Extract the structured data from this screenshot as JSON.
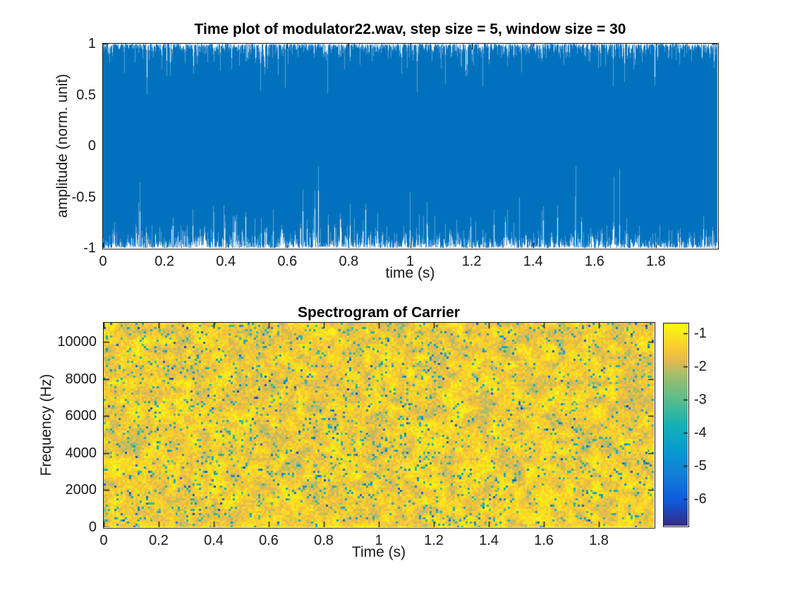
{
  "chart_data": [
    {
      "type": "line",
      "title": "Time plot of modulator22.wav, step size = 5, window size = 30",
      "xlabel": "time (s)",
      "ylabel": "amplitude (norm. unit)",
      "xlim": [
        0,
        2
      ],
      "ylim": [
        -1,
        1
      ],
      "xticks": [
        0,
        0.2,
        0.4,
        0.6,
        0.8,
        1,
        1.2,
        1.4,
        1.6,
        1.8
      ],
      "yticks": [
        1,
        0.5,
        0,
        -0.5,
        -1
      ],
      "grid": false,
      "series": [
        {
          "name": "modulator22.wav waveform",
          "color": "#0072BD",
          "description": "Dense audio waveform spanning 0 to 2 s whose envelope saturates the full -1 to 1 amplitude range for the whole duration; sparse narrow dips in the peak envelope (e.g. to about 0.62 near t=0.84 s and about 0.47 near t=1.25 s) and ragged troughs near -1."
        }
      ]
    },
    {
      "type": "heatmap",
      "title": "Spectrogram of Carrier",
      "xlabel": "Time (s)",
      "ylabel": "Frequency (Hz)",
      "xlim": [
        0,
        2
      ],
      "ylim": [
        0,
        11025
      ],
      "xticks": [
        0,
        0.2,
        0.4,
        0.6,
        0.8,
        1,
        1.2,
        1.4,
        1.6,
        1.8
      ],
      "yticks": [
        0,
        2000,
        4000,
        6000,
        8000,
        10000
      ],
      "grid": false,
      "values_description": "Noise-like spectrogram, uniform over all times and frequencies: predominantly high power (yellow/orange, about -0.7 to -2.3) with scattered teal/green cells (about -3 to -4.5) and sparse blue cells (about -5 to -6.5).",
      "colormap": "parula",
      "colorbar": {
        "location": "right",
        "ticks": [
          -1,
          -2,
          -3,
          -4,
          -5,
          -6
        ],
        "range": [
          -6.8,
          -0.7
        ]
      }
    }
  ],
  "colors": {
    "background": "#FFFFFF",
    "axis": "#1A1A1A",
    "waveform": "#0072BD",
    "waveform_light": "#5C9FD6",
    "parula_stops": [
      "#352A87",
      "#0F5CDD",
      "#127DD8",
      "#079CCF",
      "#15B1B4",
      "#59BD8C",
      "#A5BE6B",
      "#E1B952",
      "#F9C932",
      "#F9FB0E"
    ]
  }
}
